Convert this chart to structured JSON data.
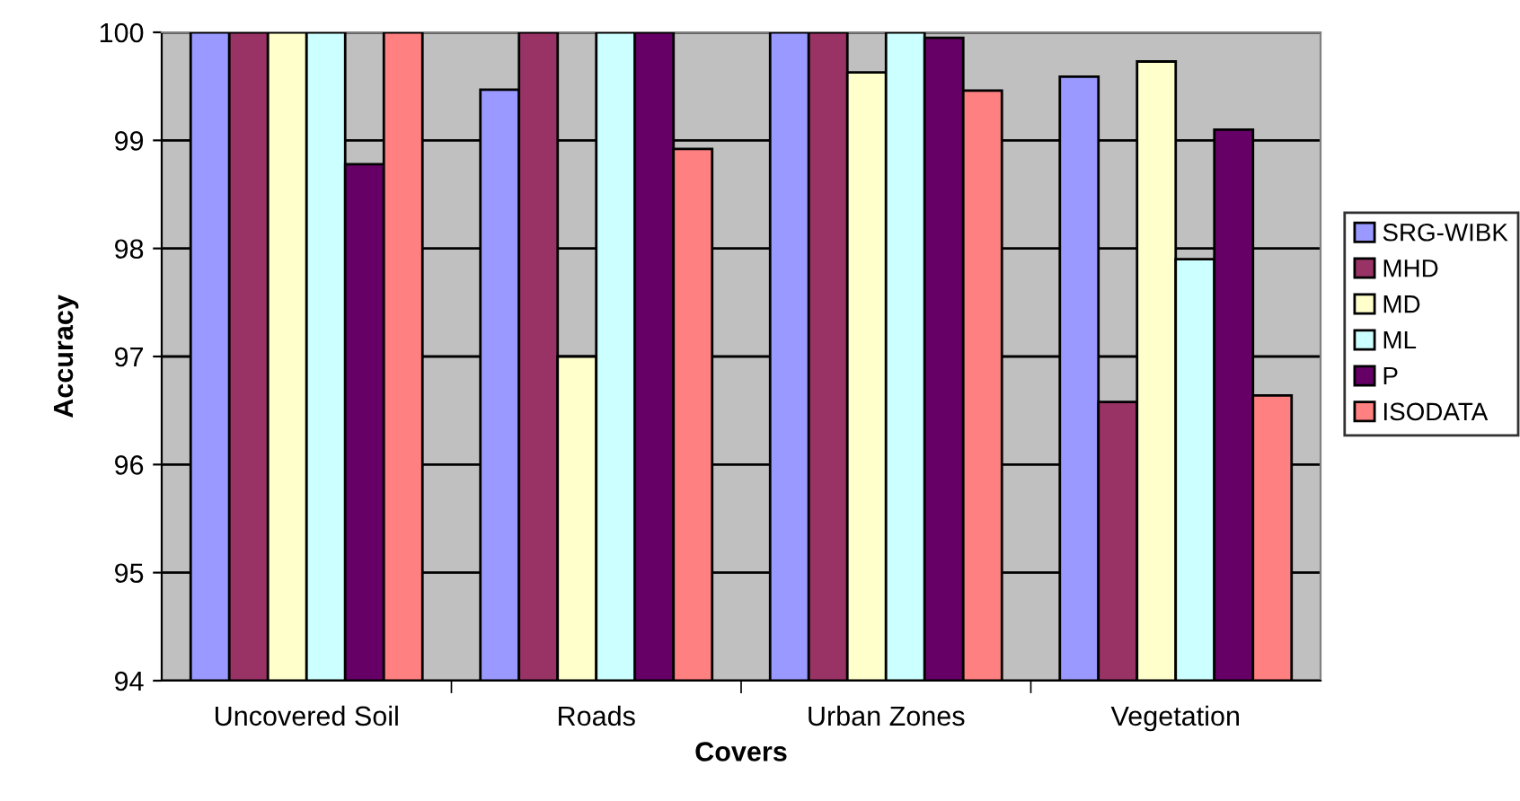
{
  "chart_data": {
    "type": "bar",
    "xlabel": "Covers",
    "ylabel": "Accuracy",
    "categories": [
      "Uncovered Soil",
      "Roads",
      "Urban Zones",
      "Vegetation"
    ],
    "series": [
      {
        "name": "SRG-WIBK",
        "color": "#9999ff",
        "values": [
          100,
          99.47,
          100,
          99.59
        ]
      },
      {
        "name": "MHD",
        "color": "#993366",
        "values": [
          100,
          100,
          100,
          96.58
        ]
      },
      {
        "name": "MD",
        "color": "#ffffcc",
        "values": [
          100,
          97.0,
          99.63,
          99.73
        ]
      },
      {
        "name": "ML",
        "color": "#ccffff",
        "values": [
          100,
          100,
          100,
          97.9
        ]
      },
      {
        "name": "P",
        "color": "#660066",
        "values": [
          98.78,
          100,
          99.95,
          99.1
        ]
      },
      {
        "name": "ISODATA",
        "color": "#ff8080",
        "values": [
          100,
          98.92,
          99.46,
          96.64
        ]
      }
    ],
    "ylim": [
      94,
      100
    ],
    "yticks": [
      94,
      95,
      96,
      97,
      98,
      99,
      100
    ],
    "grid": "y",
    "legend": "right"
  }
}
